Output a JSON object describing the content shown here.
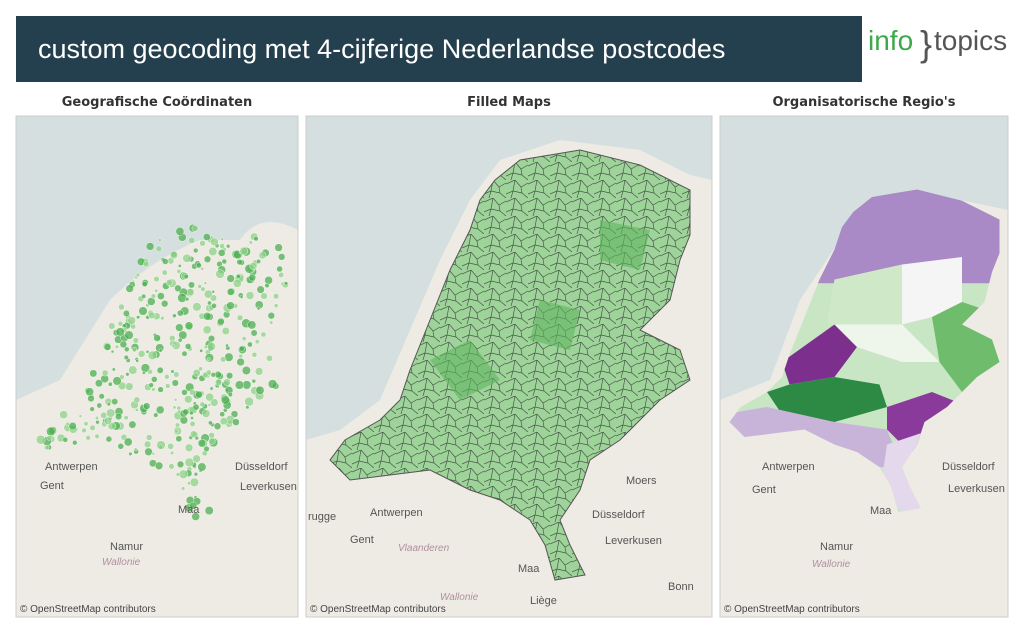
{
  "header": {
    "title": "custom geocoding met 4-cijferige Nederlandse postcodes",
    "logo_left": "info",
    "logo_brace": "}",
    "logo_right": "topics"
  },
  "panels": [
    {
      "title": "Geografische Coördinaten",
      "attribution": "© OpenStreetMap contributors",
      "labels": [
        "Antwerpen",
        "Düsseldorf",
        "Gent",
        "Leverkusen",
        "Maa",
        "Namur",
        "Wallonie"
      ]
    },
    {
      "title": "Filled Maps",
      "attribution": "© OpenStreetMap contributors",
      "labels": [
        "Antwerpen",
        "Düsseldorf",
        "Gent",
        "Vlaanderen",
        "Leverkusen",
        "Moers",
        "Maa",
        "Liège",
        "Bonn",
        "Wallonie",
        "rugge"
      ]
    },
    {
      "title": "Organisatorische Regio's",
      "attribution": "© OpenStreetMap contributors",
      "labels": [
        "Antwerpen",
        "Düsseldorf",
        "Gent",
        "Leverkusen",
        "Maa",
        "Namur",
        "Wallonie"
      ]
    }
  ]
}
